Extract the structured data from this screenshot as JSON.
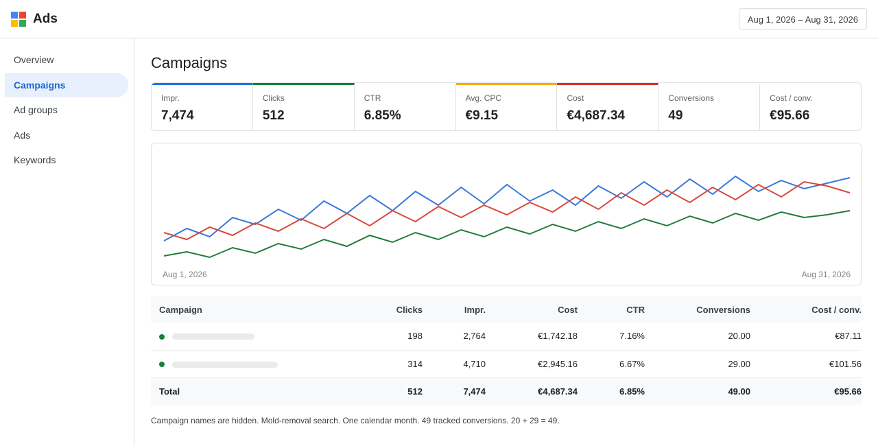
{
  "header": {
    "app": "Ads",
    "date_range": "Aug 1, 2026 – Aug 31, 2026"
  },
  "nav": {
    "items": [
      "Overview",
      "Campaigns",
      "Ad groups",
      "Ads",
      "Keywords"
    ],
    "active": 1
  },
  "page_title": "Campaigns",
  "metrics": [
    {
      "label": "Impr.",
      "value": "7,474",
      "accent": "#1a73e8"
    },
    {
      "label": "Clicks",
      "value": "512",
      "accent": "#188038"
    },
    {
      "label": "CTR",
      "value": "6.85%"
    },
    {
      "label": "Avg. CPC",
      "value": "€9.15",
      "accent": "#f9ab00"
    },
    {
      "label": "Cost",
      "value": "€4,687.34",
      "accent": "#d93025"
    },
    {
      "label": "Conversions",
      "value": "49"
    },
    {
      "label": "Cost / conv.",
      "value": "€95.66"
    }
  ],
  "chart": {
    "type": "line",
    "x_start": "Aug 1, 2026",
    "x_end": "Aug 31, 2026",
    "series": [
      {
        "color": "#3b78d8",
        "values": [
          50,
          68,
          56,
          84,
          74,
          96,
          80,
          108,
          90,
          116,
          94,
          122,
          102,
          128,
          104,
          132,
          108,
          124,
          102,
          130,
          112,
          136,
          114,
          140,
          118,
          144,
          122,
          138,
          126,
          134,
          142
        ]
      },
      {
        "color": "#d9483b",
        "values": [
          62,
          52,
          70,
          58,
          76,
          64,
          82,
          68,
          90,
          72,
          94,
          78,
          100,
          84,
          102,
          88,
          106,
          92,
          114,
          96,
          120,
          102,
          124,
          106,
          128,
          110,
          132,
          114,
          136,
          130,
          120
        ]
      },
      {
        "color": "#237a3a",
        "values": [
          28,
          34,
          26,
          40,
          32,
          46,
          38,
          52,
          42,
          58,
          48,
          62,
          52,
          66,
          56,
          70,
          60,
          74,
          64,
          78,
          68,
          82,
          72,
          86,
          76,
          90,
          80,
          92,
          84,
          88,
          94
        ]
      }
    ]
  },
  "table": {
    "headers": [
      "Campaign",
      "Clicks",
      "Impr.",
      "Cost",
      "CTR",
      "Conversions",
      "Cost / conv."
    ],
    "rows": [
      [
        "198",
        "2,764",
        "€1,742.18",
        "7.16%",
        "20.00",
        "€87.11"
      ],
      [
        "314",
        "4,710",
        "€2,945.16",
        "6.67%",
        "29.00",
        "€101.56"
      ]
    ],
    "total": [
      "Total",
      "512",
      "7,474",
      "€4,687.34",
      "6.85%",
      "49.00",
      "€95.66"
    ]
  },
  "footnote": "Campaign names are hidden. Mold-removal search. One calendar month. 49 tracked conversions. 20 + 29 = 49."
}
